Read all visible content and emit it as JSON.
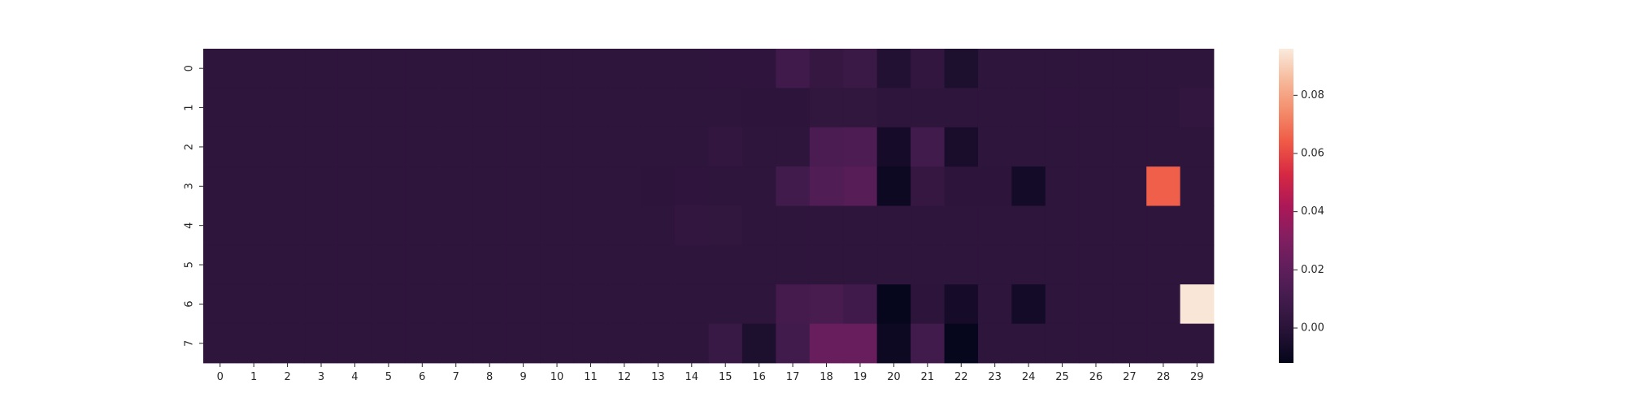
{
  "chart_data": {
    "type": "heatmap",
    "x_categories": [
      "0",
      "1",
      "2",
      "3",
      "4",
      "5",
      "6",
      "7",
      "8",
      "9",
      "10",
      "11",
      "12",
      "13",
      "14",
      "15",
      "16",
      "17",
      "18",
      "19",
      "20",
      "21",
      "22",
      "23",
      "24",
      "25",
      "26",
      "27",
      "28",
      "29"
    ],
    "y_categories": [
      "0",
      "1",
      "2",
      "3",
      "4",
      "5",
      "6",
      "7"
    ],
    "values": [
      [
        0.002,
        0.002,
        0.002,
        0.002,
        0.002,
        0.002,
        0.002,
        0.002,
        0.002,
        0.002,
        0.002,
        0.002,
        0.002,
        0.002,
        0.002,
        0.0025,
        0.0025,
        0.009,
        0.005,
        0.007,
        -0.002,
        0.004,
        -0.004,
        0.002,
        0.002,
        0.002,
        0.002,
        0.002,
        0.002,
        0.002
      ],
      [
        0.002,
        0.002,
        0.002,
        0.002,
        0.002,
        0.002,
        0.002,
        0.002,
        0.002,
        0.002,
        0.002,
        0.002,
        0.002,
        0.002,
        0.002,
        0.002,
        0.0015,
        0.0015,
        0.003,
        0.003,
        0.002,
        0.002,
        0.002,
        0.002,
        0.002,
        0.0025,
        0.002,
        0.002,
        0.002,
        0.004
      ],
      [
        0.002,
        0.002,
        0.002,
        0.002,
        0.002,
        0.002,
        0.002,
        0.002,
        0.002,
        0.002,
        0.002,
        0.002,
        0.002,
        0.002,
        0.002,
        0.004,
        0.002,
        0.002,
        0.013,
        0.014,
        -0.006,
        0.01,
        -0.005,
        0.002,
        0.002,
        0.002,
        0.002,
        0.002,
        0.002,
        0.002
      ],
      [
        0.002,
        0.002,
        0.002,
        0.002,
        0.002,
        0.002,
        0.002,
        0.002,
        0.002,
        0.002,
        0.002,
        0.002,
        0.002,
        0.001,
        0.0025,
        0.002,
        0.002,
        0.01,
        0.015,
        0.017,
        -0.009,
        0.005,
        0.001,
        0.001,
        -0.007,
        0.002,
        0.002,
        0.002,
        0.065,
        0.002
      ],
      [
        0.002,
        0.002,
        0.002,
        0.002,
        0.002,
        0.002,
        0.002,
        0.002,
        0.002,
        0.002,
        0.002,
        0.002,
        0.002,
        0.002,
        0.004,
        0.003,
        0.002,
        0.002,
        0.002,
        0.002,
        0.002,
        0.002,
        0.002,
        0.002,
        0.002,
        0.002,
        0.002,
        0.002,
        0.002,
        0.002
      ],
      [
        0.002,
        0.002,
        0.002,
        0.002,
        0.002,
        0.002,
        0.002,
        0.002,
        0.002,
        0.002,
        0.002,
        0.002,
        0.002,
        0.002,
        0.002,
        0.002,
        0.002,
        0.002,
        0.002,
        0.002,
        0.002,
        0.002,
        0.002,
        0.002,
        0.002,
        0.002,
        0.002,
        0.002,
        0.002,
        0.002
      ],
      [
        0.002,
        0.002,
        0.002,
        0.002,
        0.002,
        0.002,
        0.002,
        0.002,
        0.002,
        0.002,
        0.002,
        0.002,
        0.002,
        0.002,
        0.002,
        0.002,
        0.002,
        0.011,
        0.012,
        0.009,
        -0.011,
        0.001,
        -0.006,
        0.002,
        -0.007,
        0.002,
        0.002,
        0.002,
        0.002,
        0.095
      ],
      [
        0.002,
        0.002,
        0.002,
        0.002,
        0.002,
        0.002,
        0.002,
        0.002,
        0.002,
        0.002,
        0.002,
        0.002,
        0.002,
        0.002,
        0.002,
        0.006,
        -0.004,
        0.01,
        0.023,
        0.023,
        -0.009,
        0.01,
        -0.011,
        0.002,
        0.002,
        0.002,
        0.002,
        0.002,
        0.002,
        0.002
      ]
    ],
    "colorbar": {
      "vmin": -0.012,
      "vmax": 0.096,
      "ticks": [
        0.0,
        0.02,
        0.04,
        0.06,
        0.08
      ],
      "tick_labels": [
        "0.00",
        "0.02",
        "0.04",
        "0.06",
        "0.08"
      ]
    },
    "colormap": "rocket",
    "title": "",
    "xlabel": "",
    "ylabel": "",
    "grid": false,
    "legend": "colorbar-right"
  }
}
